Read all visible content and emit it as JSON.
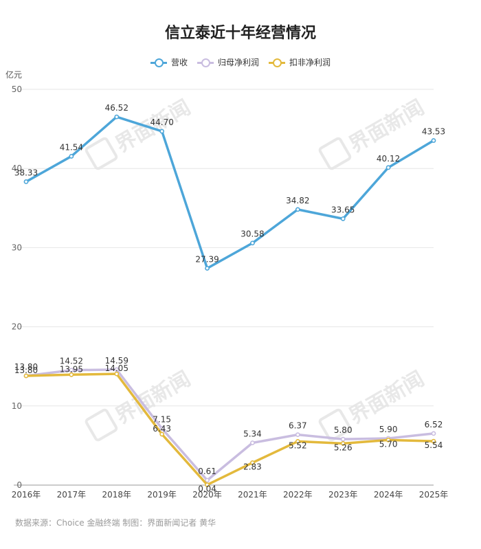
{
  "chart_data": {
    "type": "line",
    "title": "信立泰近十年经营情况",
    "ylabel": "亿元",
    "categories": [
      "2016年",
      "2017年",
      "2018年",
      "2019年",
      "2020年",
      "2021年",
      "2022年",
      "2023年",
      "2024年",
      "2025年"
    ],
    "ylim": [
      0,
      50
    ],
    "yticks": [
      0,
      10,
      20,
      30,
      40,
      50
    ],
    "grid": true,
    "legend_position": "top-center",
    "series": [
      {
        "name": "营收",
        "color": "#4da6d9",
        "values": [
          38.33,
          41.54,
          46.52,
          44.7,
          27.39,
          30.58,
          34.82,
          33.65,
          40.12,
          43.53
        ]
      },
      {
        "name": "归母净利润",
        "color": "#c9bde0",
        "values": [
          13.8,
          14.52,
          14.59,
          7.15,
          0.61,
          5.34,
          6.37,
          5.8,
          5.9,
          6.52
        ]
      },
      {
        "name": "扣非净利润",
        "color": "#e3b93c",
        "values": [
          13.8,
          13.95,
          14.05,
          6.43,
          0.04,
          2.83,
          5.52,
          5.26,
          5.7,
          5.54
        ]
      }
    ]
  },
  "footer": "数据来源：Choice 金融终端 制图：界面新闻记者 黄华",
  "watermark": "界面新闻"
}
